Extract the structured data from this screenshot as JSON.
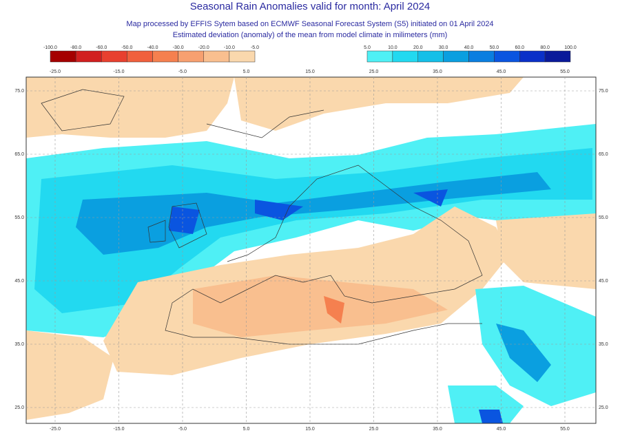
{
  "title": "Seasonal Rain Anomalies valid for month: April 2024",
  "subtitle": "Map processed by EFFIS Sytem based on ECMWF Seasonal Forecast System (S5) initiated on 01 April 2024",
  "description": "Estimated deviation (anomaly) of the mean from model climate in milimeters (mm)",
  "legend_dry": {
    "labels": [
      "-100.0",
      "-80.0",
      "-60.0",
      "-50.0",
      "-40.0",
      "-30.0",
      "-20.0",
      "-10.0",
      "-5.0"
    ],
    "colors": [
      "#a50000",
      "#d11f1f",
      "#e8402f",
      "#f0603d",
      "#f5804f",
      "#f7a070",
      "#f9bf8f",
      "#fad8ad"
    ]
  },
  "legend_wet": {
    "labels": [
      "5.0",
      "10.0",
      "20.0",
      "30.0",
      "40.0",
      "50.0",
      "60.0",
      "80.0",
      "100.0"
    ],
    "colors": [
      "#4ff0f5",
      "#22d9f0",
      "#14bfe8",
      "#0a9fe0",
      "#0a7ee0",
      "#0a55e0",
      "#0a30c8",
      "#0a1a9a"
    ]
  },
  "longitude_labels": [
    "-25.0",
    "-15.0",
    "-5.0",
    "5.0",
    "15.0",
    "25.0",
    "35.0",
    "45.0",
    "55.0"
  ],
  "latitude_labels": [
    "75.0",
    "65.0",
    "55.0",
    "45.0",
    "35.0",
    "25.0"
  ]
}
